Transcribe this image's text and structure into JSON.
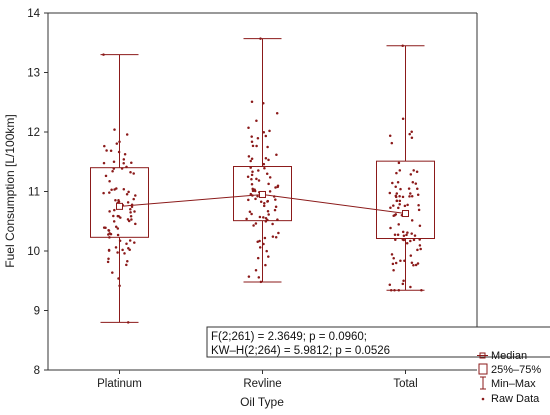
{
  "chart_data": {
    "type": "box",
    "xlabel": "Oil Type",
    "ylabel": "Fuel Consumption [L/100km]",
    "ylim": [
      8,
      14
    ],
    "yticks": [
      8,
      9,
      10,
      11,
      12,
      13,
      14
    ],
    "categories": [
      "Platinum",
      "Revline",
      "Total"
    ],
    "series": [
      {
        "name": "Median",
        "values": [
          10.75,
          10.95,
          10.63
        ]
      },
      {
        "name": "25%–75%",
        "values": [
          [
            10.23,
            11.4
          ],
          [
            10.51,
            11.42
          ],
          [
            10.21,
            11.51
          ]
        ]
      },
      {
        "name": "Min–Max",
        "values": [
          [
            8.8,
            13.3
          ],
          [
            9.48,
            13.57
          ],
          [
            9.34,
            13.45
          ]
        ]
      },
      {
        "name": "Raw Data",
        "values": []
      }
    ],
    "raw_points_per_group": 88,
    "legend_position": "bottom-right",
    "annotation": [
      "F(2;261) = 2.3649; p = 0.0960;",
      "KW–H(2;264) = 5.9812; p = 0.0526"
    ],
    "grid": false
  },
  "colors": {
    "primary": "#8b1a1a",
    "axis": "#333333"
  }
}
